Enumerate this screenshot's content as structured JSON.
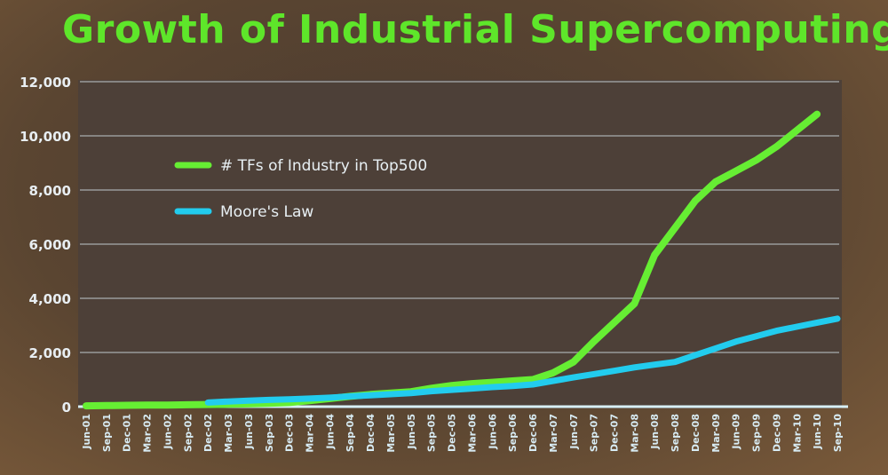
{
  "chart_data": {
    "type": "line",
    "title": "Growth of Industrial Supercomputing",
    "xlabel": "",
    "ylabel": "",
    "ylim": [
      0,
      12000
    ],
    "yticks": [
      "0",
      "2,000",
      "4,000",
      "6,000",
      "8,000",
      "10,000",
      "12,000"
    ],
    "grid": true,
    "legend_placement": "top-left",
    "categories": [
      "Jun-01",
      "Sep-01",
      "Dec-01",
      "Mar-02",
      "Jun-02",
      "Sep-02",
      "Dec-02",
      "Mar-03",
      "Jun-03",
      "Sep-03",
      "Dec-03",
      "Mar-04",
      "Jun-04",
      "Sep-04",
      "Dec-04",
      "Mar-05",
      "Jun-05",
      "Sep-05",
      "Dec-05",
      "Mar-06",
      "Jun-06",
      "Sep-06",
      "Dec-06",
      "Mar-07",
      "Jun-07",
      "Sep-07",
      "Dec-07",
      "Mar-08",
      "Jun-08",
      "Sep-08",
      "Dec-08",
      "Mar-09",
      "Jun-09",
      "Sep-09",
      "Dec-09",
      "Mar-10",
      "Jun-10",
      "Sep-10"
    ],
    "series": [
      {
        "name": "# TFs of Industry in Top500",
        "color": "#66ee33",
        "values": [
          30,
          40,
          50,
          55,
          60,
          70,
          80,
          90,
          100,
          120,
          150,
          220,
          300,
          380,
          450,
          500,
          550,
          680,
          780,
          850,
          900,
          950,
          1000,
          1250,
          1650,
          2400,
          3100,
          3800,
          5600,
          6600,
          7600,
          8300,
          8700,
          9100,
          9600,
          10200,
          10800,
          null
        ]
      },
      {
        "name": "Moore's Law",
        "color": "#22ccee",
        "values": [
          null,
          null,
          null,
          null,
          null,
          null,
          150,
          190,
          220,
          250,
          270,
          300,
          330,
          380,
          420,
          460,
          500,
          570,
          620,
          670,
          720,
          760,
          820,
          950,
          1080,
          1200,
          1320,
          1450,
          1550,
          1650,
          1900,
          2150,
          2400,
          2600,
          2800,
          2950,
          3100,
          3250
        ]
      }
    ]
  },
  "colors": {
    "title": "#5ee62a",
    "plot_background": "#4d4038",
    "grid": "#9a9a9a",
    "axis": "#d8f0f8"
  }
}
